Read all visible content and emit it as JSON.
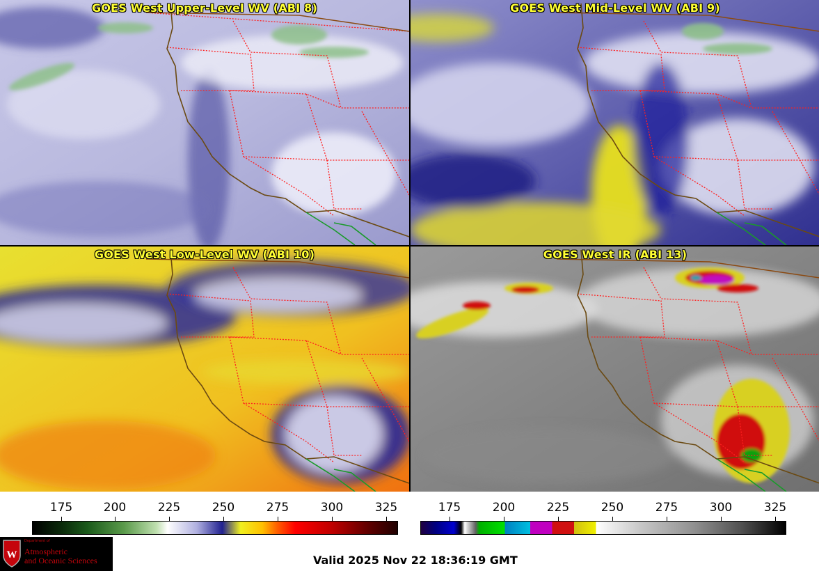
{
  "panels": [
    {
      "title": "GOES West Upper-Level WV (ABI 8)"
    },
    {
      "title": "GOES West Mid-Level WV (ABI 9)"
    },
    {
      "title": "GOES West Low-Level WV (ABI 10)"
    },
    {
      "title": "GOES West IR (ABI 13)"
    }
  ],
  "colorbar_wv": {
    "ticks": [
      "175",
      "200",
      "225",
      "250",
      "275",
      "300",
      "325"
    ]
  },
  "colorbar_ir": {
    "ticks": [
      "175",
      "200",
      "225",
      "250",
      "275",
      "300",
      "325"
    ]
  },
  "logo": {
    "dept": "Department of",
    "name_line1": "Atmospheric",
    "name_line2": "and Oceanic Sciences"
  },
  "valid_time": "Valid 2025 Nov 22 18:36:19 GMT",
  "colors": {
    "title": "#ffff33",
    "state_border": "#ff2020",
    "coast": "#6b4a12",
    "mexico_border": "#1a9a2a"
  }
}
